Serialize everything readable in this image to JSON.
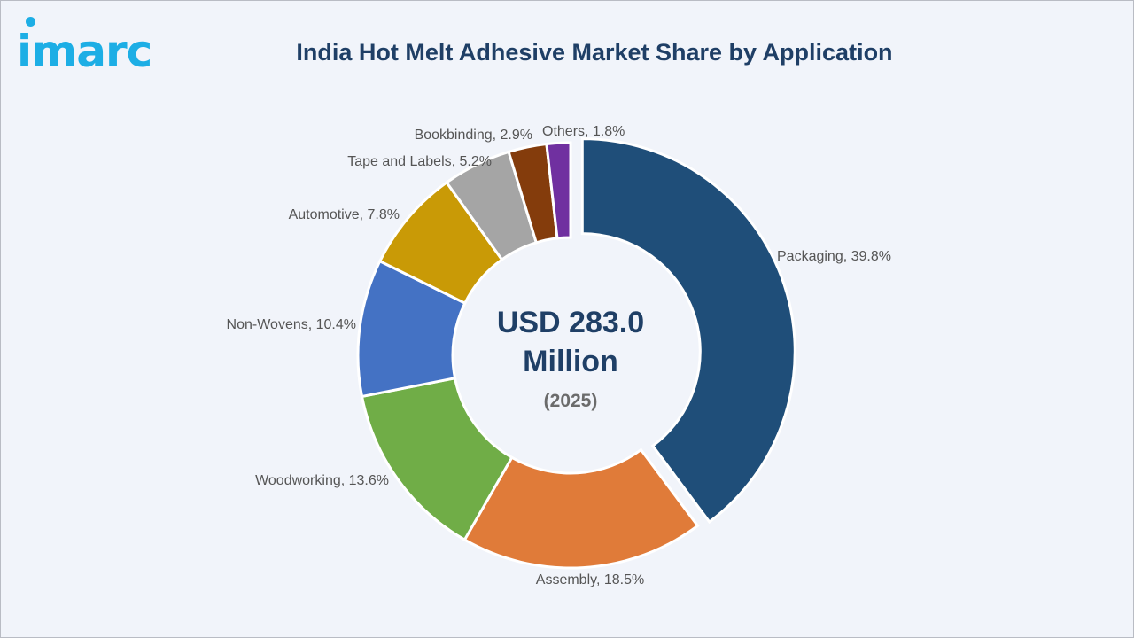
{
  "brand": {
    "logo_text": "imarc",
    "color": "#1daee5"
  },
  "chart_data": {
    "type": "pie",
    "variant": "donut",
    "title": "India Hot Melt Adhesive Market Share by Application",
    "center_value": "USD 283.0",
    "center_unit": "Million",
    "center_year": "(2025)",
    "categories": [
      "Packaging",
      "Assembly",
      "Woodworking",
      "Non-Wovens",
      "Automotive",
      "Tape and Labels",
      "Bookbinding",
      "Others"
    ],
    "values": [
      39.8,
      18.5,
      13.6,
      10.4,
      7.8,
      5.2,
      2.9,
      1.8
    ],
    "labels": [
      "Packaging, 39.8%",
      "Assembly, 18.5%",
      "Woodworking, 13.6%",
      "Non-Wovens, 10.4%",
      "Automotive, 7.8%",
      "Tape and Labels, 5.2%",
      "Bookbinding, 2.9%",
      "Others, 1.8%"
    ],
    "colors": [
      "#1f4e79",
      "#e07b39",
      "#70ad47",
      "#4472c4",
      "#c99a06",
      "#a5a5a5",
      "#843c0c",
      "#7030a0"
    ],
    "exploded": [
      "Packaging"
    ],
    "legend": "none"
  }
}
